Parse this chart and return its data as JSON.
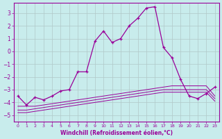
{
  "xlabel": "Windchill (Refroidissement éolien,°C)",
  "background_color": "#c8ecec",
  "grid_color": "#b0c8c8",
  "line_color": "#990099",
  "xlim": [
    -0.5,
    23.5
  ],
  "ylim": [
    -5.5,
    3.8
  ],
  "yticks": [
    -5,
    -4,
    -3,
    -2,
    -1,
    0,
    1,
    2,
    3
  ],
  "xticks": [
    0,
    1,
    2,
    3,
    4,
    5,
    6,
    7,
    8,
    9,
    10,
    11,
    12,
    13,
    14,
    15,
    16,
    17,
    18,
    19,
    20,
    21,
    22,
    23
  ],
  "series1_x": [
    0,
    1,
    2,
    3,
    4,
    5,
    6,
    7,
    8,
    9,
    10,
    11,
    12,
    13,
    14,
    15,
    16,
    17,
    18,
    19,
    20,
    21,
    22,
    23
  ],
  "series1_y": [
    -3.5,
    -4.2,
    -3.6,
    -3.8,
    -3.5,
    -3.1,
    -3.0,
    -1.6,
    -1.6,
    0.8,
    1.6,
    0.7,
    1.0,
    2.0,
    2.6,
    3.4,
    3.5,
    0.3,
    -0.5,
    -2.2,
    -3.5,
    -3.7,
    -3.3,
    -2.8
  ],
  "series2_x": [
    0,
    1,
    2,
    3,
    4,
    5,
    6,
    7,
    8,
    9,
    10,
    11,
    12,
    13,
    14,
    15,
    16,
    17,
    18,
    19,
    20,
    21,
    22,
    23
  ],
  "series2_y": [
    -4.3,
    -4.3,
    -4.3,
    -4.2,
    -4.1,
    -4.0,
    -3.9,
    -3.8,
    -3.7,
    -3.6,
    -3.5,
    -3.4,
    -3.3,
    -3.2,
    -3.1,
    -3.0,
    -2.9,
    -2.8,
    -2.7,
    -2.7,
    -2.7,
    -2.7,
    -2.7,
    -3.5
  ],
  "series3_x": [
    0,
    1,
    2,
    3,
    4,
    5,
    6,
    7,
    8,
    9,
    10,
    11,
    12,
    13,
    14,
    15,
    16,
    17,
    18,
    19,
    20,
    21,
    22,
    23
  ],
  "series3_y": [
    -4.6,
    -4.6,
    -4.5,
    -4.4,
    -4.3,
    -4.2,
    -4.1,
    -4.0,
    -3.9,
    -3.8,
    -3.7,
    -3.6,
    -3.5,
    -3.4,
    -3.3,
    -3.2,
    -3.1,
    -3.0,
    -3.0,
    -3.0,
    -3.0,
    -3.0,
    -3.0,
    -3.7
  ],
  "series4_x": [
    0,
    1,
    2,
    3,
    4,
    5,
    6,
    7,
    8,
    9,
    10,
    11,
    12,
    13,
    14,
    15,
    16,
    17,
    18,
    19,
    20,
    21,
    22,
    23
  ],
  "series4_y": [
    -4.8,
    -4.8,
    -4.7,
    -4.6,
    -4.5,
    -4.4,
    -4.3,
    -4.2,
    -4.1,
    -4.0,
    -3.9,
    -3.8,
    -3.7,
    -3.6,
    -3.5,
    -3.4,
    -3.3,
    -3.2,
    -3.2,
    -3.2,
    -3.2,
    -3.2,
    -3.2,
    -3.9
  ]
}
